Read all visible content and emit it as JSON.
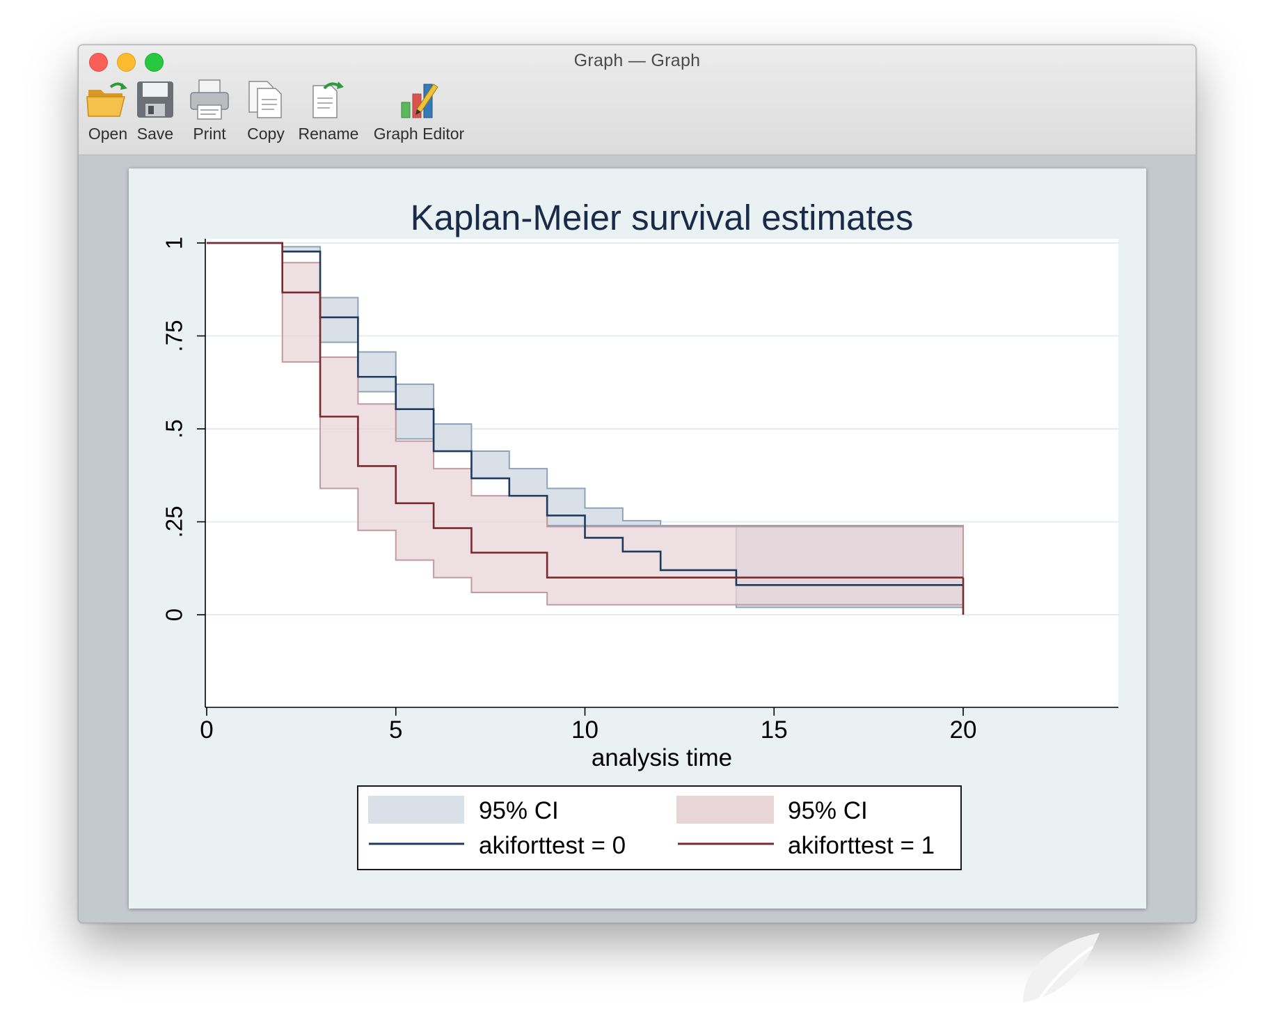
{
  "window": {
    "title": "Graph — Graph"
  },
  "toolbar": {
    "items": [
      {
        "label": "Open",
        "icon": "open-folder-icon"
      },
      {
        "label": "Save",
        "icon": "floppy-disk-icon"
      },
      {
        "label": "Print",
        "icon": "printer-icon"
      },
      {
        "label": "Copy",
        "icon": "copy-documents-icon"
      },
      {
        "label": "Rename",
        "icon": "rename-document-icon"
      },
      {
        "label": "Graph Editor",
        "icon": "graph-editor-icon"
      }
    ]
  },
  "colors": {
    "group0_line": "#1f3a5f",
    "group0_ci_fill": "#d9e0e7",
    "group0_ci_edge": "#8fa3b8",
    "group1_line": "#7a2a2a",
    "group1_ci_fill": "#e8d5d8",
    "group1_ci_edge": "#c19aa0",
    "plot_region_bg": "#ffffff",
    "graph_region_bg": "#eaf1f3",
    "title_color": "#1a2b4a"
  },
  "chart_data": {
    "type": "line",
    "subtype": "step",
    "title": "Kaplan-Meier survival estimates",
    "xlabel": "analysis time",
    "ylabel": "",
    "xlim": [
      0,
      20
    ],
    "ylim": [
      0,
      1
    ],
    "xticks": [
      0,
      5,
      10,
      15,
      20
    ],
    "xtick_labels": [
      "0",
      "5",
      "10",
      "15",
      "20"
    ],
    "yticks": [
      0,
      0.25,
      0.5,
      0.75,
      1
    ],
    "ytick_labels": [
      "0",
      ".25",
      ".5",
      ".75",
      "1"
    ],
    "grid": true,
    "legend_position": "bottom",
    "legend": [
      {
        "label": "95% CI",
        "kind": "area",
        "series": "akiforttest = 0"
      },
      {
        "label": "95% CI",
        "kind": "area",
        "series": "akiforttest = 1"
      },
      {
        "label": "akiforttest = 0",
        "kind": "line"
      },
      {
        "label": "akiforttest = 1",
        "kind": "line"
      }
    ],
    "series": [
      {
        "name": "akiforttest = 0",
        "x": [
          0,
          2,
          3,
          4,
          5,
          6,
          7,
          8,
          9,
          10,
          11,
          12,
          14,
          17,
          20
        ],
        "y": [
          1,
          0.977,
          0.8,
          0.64,
          0.553,
          0.44,
          0.367,
          0.32,
          0.267,
          0.207,
          0.17,
          0.12,
          0.08,
          0.08,
          0.08
        ],
        "ci_lower": [
          null,
          0.978,
          0.733,
          0.6,
          0.473,
          0.44,
          0.367,
          0.32,
          0.24,
          0.24,
          0.24,
          0.24,
          0.02,
          0.02,
          null
        ],
        "ci_upper": [
          null,
          0.99,
          0.853,
          0.707,
          0.62,
          0.513,
          0.44,
          0.393,
          0.34,
          0.287,
          0.253,
          0.24,
          0.24,
          0.24,
          null
        ]
      },
      {
        "name": "akiforttest = 1",
        "x": [
          0,
          2,
          3,
          4,
          5,
          6,
          7,
          9,
          20
        ],
        "y": [
          1,
          0.867,
          0.533,
          0.4,
          0.3,
          0.233,
          0.167,
          0.1,
          0.1
        ],
        "ci_lower": [
          null,
          0.68,
          0.34,
          0.227,
          0.147,
          0.1,
          0.06,
          0.027,
          0.027
        ],
        "ci_upper": [
          null,
          0.947,
          0.693,
          0.567,
          0.467,
          0.393,
          0.32,
          0.237,
          0.237
        ]
      }
    ]
  }
}
